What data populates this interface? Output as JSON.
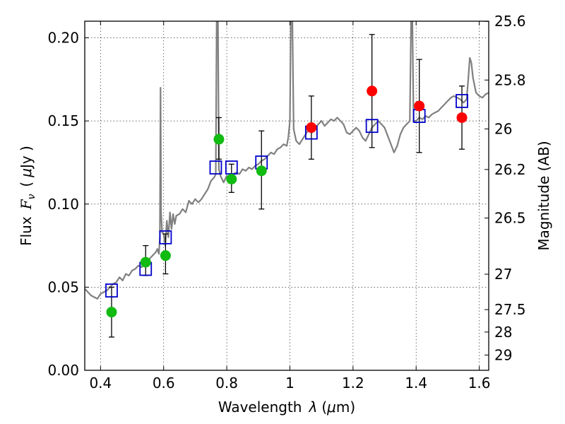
{
  "chart_data": {
    "type": "scatter",
    "xlabel": "Wavelength",
    "xlabel_symbol": "λ",
    "xlabel_unit_open": "(",
    "xlabel_unit_mu": "μ",
    "xlabel_unit_rest": "m)",
    "ylabel": "Flux",
    "ylabel_symbol": "F",
    "ylabel_symbol_sub": "ν",
    "ylabel_unit_open": "(",
    "ylabel_unit_mu": "μ",
    "ylabel_unit_rest": "Jy )",
    "y2label": "Magnitude (AB)",
    "xlim": [
      0.35,
      1.63
    ],
    "ylim": [
      0.0,
      0.21
    ],
    "grid": true,
    "x_ticks": [
      0.4,
      0.6,
      0.8,
      1.0,
      1.2,
      1.4,
      1.6
    ],
    "x_tick_labels": [
      "0.4",
      "0.6",
      "0.8",
      "1",
      "1.2",
      "1.4",
      "1.6"
    ],
    "y_ticks": [
      0.0,
      0.05,
      0.1,
      0.15,
      0.2
    ],
    "y_tick_labels": [
      "0.00",
      "0.05",
      "0.10",
      "0.15",
      "0.20"
    ],
    "y2_ticks": [
      {
        "label": "25.6",
        "flux": 0.2099
      },
      {
        "label": "25.8",
        "flux": 0.1746
      },
      {
        "label": "26",
        "flux": 0.1452
      },
      {
        "label": "26.2",
        "flux": 0.1208
      },
      {
        "label": "26.5",
        "flux": 0.0916
      },
      {
        "label": "27",
        "flux": 0.0578
      },
      {
        "label": "27.5",
        "flux": 0.0365
      },
      {
        "label": "28",
        "flux": 0.023
      },
      {
        "label": "29",
        "flux": 0.0092
      }
    ],
    "series": [
      {
        "name": "observed-green",
        "color": "#11bb11",
        "points": [
          {
            "x": 0.435,
            "y": 0.035,
            "ylo": 0.02,
            "yhi": 0.05
          },
          {
            "x": 0.543,
            "y": 0.065,
            "ylo": 0.057,
            "yhi": 0.075
          },
          {
            "x": 0.606,
            "y": 0.069,
            "ylo": 0.058,
            "yhi": 0.082
          },
          {
            "x": 0.775,
            "y": 0.139,
            "ylo": 0.127,
            "yhi": 0.152
          },
          {
            "x": 0.815,
            "y": 0.115,
            "ylo": 0.107,
            "yhi": 0.124
          },
          {
            "x": 0.91,
            "y": 0.12,
            "ylo": 0.097,
            "yhi": 0.144
          }
        ]
      },
      {
        "name": "observed-red",
        "color": "#ff0000",
        "points": [
          {
            "x": 1.068,
            "y": 0.146,
            "ylo": 0.127,
            "yhi": 0.165
          },
          {
            "x": 1.26,
            "y": 0.168,
            "ylo": 0.134,
            "yhi": 0.202
          },
          {
            "x": 1.41,
            "y": 0.159,
            "ylo": 0.131,
            "yhi": 0.187
          },
          {
            "x": 1.545,
            "y": 0.152,
            "ylo": 0.133,
            "yhi": 0.171
          }
        ]
      },
      {
        "name": "model-photometry",
        "color": "#0000cc",
        "points": [
          {
            "x": 0.435,
            "y": 0.048
          },
          {
            "x": 0.543,
            "y": 0.061
          },
          {
            "x": 0.606,
            "y": 0.08
          },
          {
            "x": 0.765,
            "y": 0.122
          },
          {
            "x": 0.815,
            "y": 0.122
          },
          {
            "x": 0.91,
            "y": 0.125
          },
          {
            "x": 1.068,
            "y": 0.143
          },
          {
            "x": 1.26,
            "y": 0.147
          },
          {
            "x": 1.41,
            "y": 0.153
          },
          {
            "x": 1.545,
            "y": 0.162
          }
        ]
      }
    ],
    "model_spectrum": {
      "name": "model-spectrum",
      "color": "#808080",
      "points": [
        [
          0.35,
          0.049
        ],
        [
          0.36,
          0.047
        ],
        [
          0.37,
          0.045
        ],
        [
          0.38,
          0.044
        ],
        [
          0.39,
          0.043
        ],
        [
          0.4,
          0.046
        ],
        [
          0.41,
          0.047
        ],
        [
          0.42,
          0.048
        ],
        [
          0.43,
          0.05
        ],
        [
          0.44,
          0.052
        ],
        [
          0.45,
          0.053
        ],
        [
          0.46,
          0.056
        ],
        [
          0.47,
          0.054
        ],
        [
          0.48,
          0.058
        ],
        [
          0.49,
          0.057
        ],
        [
          0.5,
          0.06
        ],
        [
          0.51,
          0.061
        ],
        [
          0.52,
          0.063
        ],
        [
          0.53,
          0.062
        ],
        [
          0.54,
          0.064
        ],
        [
          0.55,
          0.066
        ],
        [
          0.56,
          0.068
        ],
        [
          0.57,
          0.07
        ],
        [
          0.575,
          0.071
        ],
        [
          0.58,
          0.073
        ],
        [
          0.585,
          0.07
        ],
        [
          0.588,
          0.08
        ],
        [
          0.59,
          0.17
        ],
        [
          0.592,
          0.095
        ],
        [
          0.595,
          0.083
        ],
        [
          0.6,
          0.082
        ],
        [
          0.605,
          0.075
        ],
        [
          0.61,
          0.09
        ],
        [
          0.615,
          0.08
        ],
        [
          0.62,
          0.095
        ],
        [
          0.625,
          0.085
        ],
        [
          0.63,
          0.094
        ],
        [
          0.635,
          0.088
        ],
        [
          0.64,
          0.093
        ],
        [
          0.65,
          0.094
        ],
        [
          0.66,
          0.097
        ],
        [
          0.67,
          0.095
        ],
        [
          0.68,
          0.102
        ],
        [
          0.69,
          0.1
        ],
        [
          0.7,
          0.103
        ],
        [
          0.71,
          0.101
        ],
        [
          0.72,
          0.103
        ],
        [
          0.73,
          0.106
        ],
        [
          0.74,
          0.109
        ],
        [
          0.75,
          0.114
        ],
        [
          0.76,
          0.116
        ],
        [
          0.765,
          0.118
        ],
        [
          0.768,
          0.21
        ],
        [
          0.772,
          0.21
        ],
        [
          0.775,
          0.121
        ],
        [
          0.78,
          0.117
        ],
        [
          0.79,
          0.113
        ],
        [
          0.8,
          0.117
        ],
        [
          0.81,
          0.116
        ],
        [
          0.82,
          0.118
        ],
        [
          0.83,
          0.119
        ],
        [
          0.84,
          0.118
        ],
        [
          0.85,
          0.121
        ],
        [
          0.86,
          0.12
        ],
        [
          0.87,
          0.122
        ],
        [
          0.88,
          0.121
        ],
        [
          0.89,
          0.123
        ],
        [
          0.9,
          0.124
        ],
        [
          0.91,
          0.126
        ],
        [
          0.92,
          0.127
        ],
        [
          0.93,
          0.129
        ],
        [
          0.94,
          0.131
        ],
        [
          0.95,
          0.13
        ],
        [
          0.96,
          0.133
        ],
        [
          0.97,
          0.134
        ],
        [
          0.98,
          0.136
        ],
        [
          0.99,
          0.135
        ],
        [
          0.995,
          0.14
        ],
        [
          1.0,
          0.15
        ],
        [
          1.003,
          0.21
        ],
        [
          1.008,
          0.21
        ],
        [
          1.012,
          0.145
        ],
        [
          1.02,
          0.138
        ],
        [
          1.03,
          0.136
        ],
        [
          1.04,
          0.139
        ],
        [
          1.05,
          0.142
        ],
        [
          1.06,
          0.145
        ],
        [
          1.07,
          0.143
        ],
        [
          1.08,
          0.146
        ],
        [
          1.09,
          0.148
        ],
        [
          1.1,
          0.15
        ],
        [
          1.11,
          0.147
        ],
        [
          1.12,
          0.149
        ],
        [
          1.13,
          0.151
        ],
        [
          1.14,
          0.15
        ],
        [
          1.15,
          0.152
        ],
        [
          1.16,
          0.15
        ],
        [
          1.17,
          0.148
        ],
        [
          1.18,
          0.143
        ],
        [
          1.19,
          0.142
        ],
        [
          1.2,
          0.144
        ],
        [
          1.21,
          0.146
        ],
        [
          1.22,
          0.144
        ],
        [
          1.23,
          0.14
        ],
        [
          1.24,
          0.138
        ],
        [
          1.25,
          0.142
        ],
        [
          1.26,
          0.146
        ],
        [
          1.27,
          0.148
        ],
        [
          1.28,
          0.15
        ],
        [
          1.29,
          0.148
        ],
        [
          1.3,
          0.146
        ],
        [
          1.31,
          0.141
        ],
        [
          1.32,
          0.136
        ],
        [
          1.33,
          0.131
        ],
        [
          1.34,
          0.135
        ],
        [
          1.35,
          0.142
        ],
        [
          1.36,
          0.146
        ],
        [
          1.37,
          0.148
        ],
        [
          1.38,
          0.15
        ],
        [
          1.384,
          0.21
        ],
        [
          1.388,
          0.21
        ],
        [
          1.392,
          0.15
        ],
        [
          1.4,
          0.15
        ],
        [
          1.41,
          0.152
        ],
        [
          1.42,
          0.151
        ],
        [
          1.43,
          0.153
        ],
        [
          1.44,
          0.152
        ],
        [
          1.45,
          0.154
        ],
        [
          1.46,
          0.155
        ],
        [
          1.47,
          0.156
        ],
        [
          1.48,
          0.158
        ],
        [
          1.49,
          0.16
        ],
        [
          1.5,
          0.162
        ],
        [
          1.51,
          0.164
        ],
        [
          1.52,
          0.165
        ],
        [
          1.53,
          0.164
        ],
        [
          1.54,
          0.163
        ],
        [
          1.55,
          0.161
        ],
        [
          1.56,
          0.163
        ],
        [
          1.565,
          0.175
        ],
        [
          1.57,
          0.188
        ],
        [
          1.575,
          0.185
        ],
        [
          1.58,
          0.176
        ],
        [
          1.59,
          0.167
        ],
        [
          1.6,
          0.165
        ],
        [
          1.61,
          0.164
        ],
        [
          1.62,
          0.166
        ],
        [
          1.63,
          0.167
        ]
      ]
    }
  }
}
